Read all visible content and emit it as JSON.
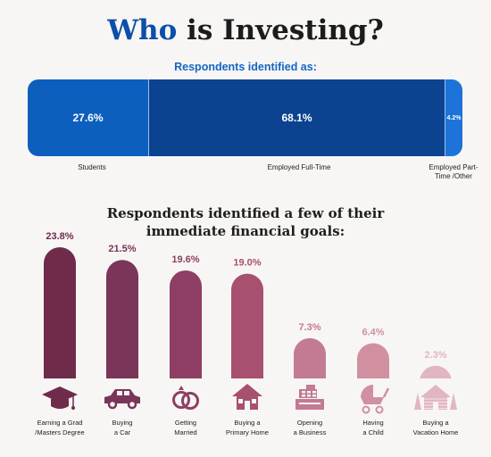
{
  "title_part1": "Who",
  "title_part2": " is Investing?",
  "respondents": {
    "subtitle": "Respondents identified as:",
    "segments": [
      {
        "value_label": "27.6%",
        "label": "Students",
        "color": "#0d5fbe"
      },
      {
        "value_label": "68.1%",
        "label": "Employed Full-Time",
        "color": "#0b4391"
      },
      {
        "value_label": "4.2%",
        "label": "Employed Part-Time /Other",
        "color": "#1d73d9"
      }
    ]
  },
  "goals_title_line1": "Respondents identified a few of their",
  "goals_title_line2": "immediate financial goals:",
  "chart_data": [
    {
      "type": "bar",
      "title": "Respondents identified as:",
      "stacked": true,
      "orientation": "horizontal",
      "categories": [
        "Students",
        "Employed Full-Time",
        "Employed Part-Time /Other"
      ],
      "values": [
        27.6,
        68.1,
        4.2
      ],
      "value_labels": [
        "27.6%",
        "68.1%",
        "4.2%"
      ]
    },
    {
      "type": "bar",
      "title": "Respondents identified a few of their immediate financial goals:",
      "categories": [
        "Earning a Grad /Masters Degree",
        "Buying a Car",
        "Getting Married",
        "Buying a Primary Home",
        "Opening a Business",
        "Having a Child",
        "Buying a Vacation Home"
      ],
      "values": [
        23.8,
        21.5,
        19.6,
        19.0,
        7.3,
        6.4,
        2.3
      ],
      "value_labels": [
        "23.8%",
        "21.5%",
        "19.6%",
        "19.0%",
        "7.3%",
        "6.4%",
        "2.3%"
      ],
      "label_lines": [
        [
          "Earning a Grad",
          "/Masters Degree"
        ],
        [
          "Buying",
          "a Car"
        ],
        [
          "Getting",
          "Married"
        ],
        [
          "Buying a",
          "Primary Home"
        ],
        [
          "Opening",
          "a Business"
        ],
        [
          "Having",
          "a Child"
        ],
        [
          "Buying a",
          "Vacation Home"
        ]
      ],
      "icons": [
        "graduation-cap-icon",
        "car-icon",
        "rings-icon",
        "house-icon",
        "cash-register-icon",
        "stroller-icon",
        "cabin-icon"
      ],
      "colors": [
        "#6e2b4a",
        "#7a3558",
        "#8e3f63",
        "#a8506f",
        "#c37a93",
        "#d0909f",
        "#e2b6c1"
      ],
      "ylim": [
        0,
        23.8
      ]
    }
  ]
}
